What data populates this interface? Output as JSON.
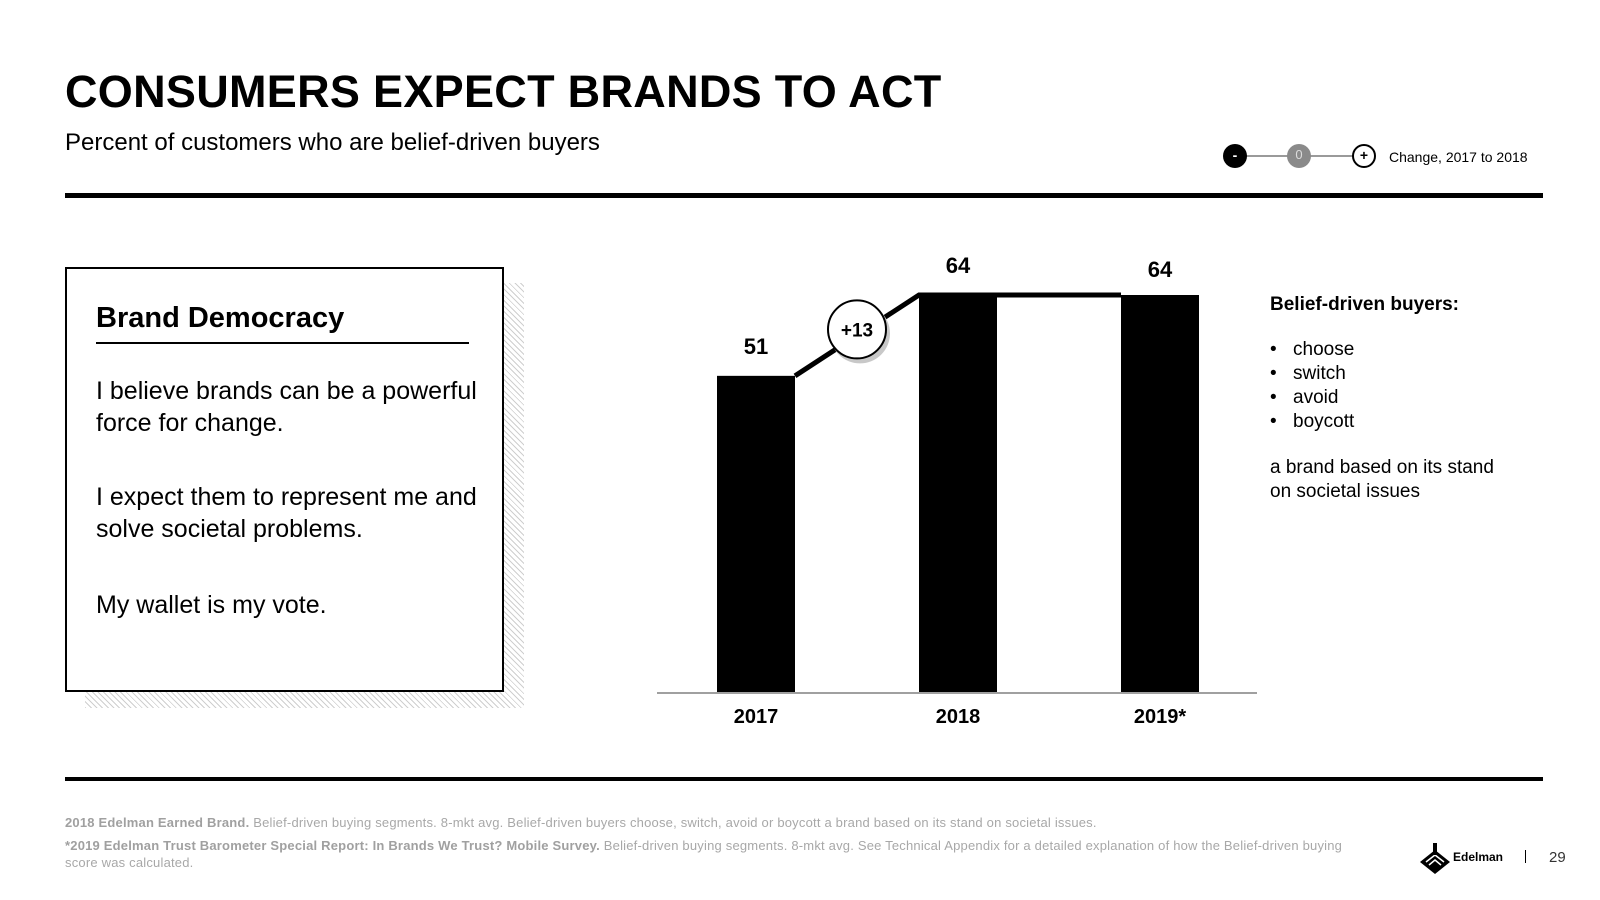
{
  "header": {
    "title": "CONSUMERS EXPECT BRANDS TO ACT",
    "subtitle": "Percent of customers who are belief-driven buyers"
  },
  "legend": {
    "minus": "-",
    "zero": "0",
    "plus": "+",
    "label": "Change, 2017 to 2018"
  },
  "card": {
    "heading": "Brand Democracy",
    "paragraphs": [
      "I believe brands can be a powerful force for change.",
      "I expect them to represent me and solve societal problems.",
      "My wallet is my vote."
    ]
  },
  "chart_data": {
    "type": "bar",
    "categories": [
      "2017",
      "2018",
      "2019*"
    ],
    "values": [
      51,
      64,
      64
    ],
    "title": "",
    "xlabel": "",
    "ylabel": "",
    "ylim": [
      0,
      64
    ],
    "grid": false,
    "change_annotation": {
      "from": "2017",
      "to": "2018",
      "label": "+13"
    }
  },
  "side": {
    "heading": "Belief-driven buyers:",
    "items": [
      "choose",
      "switch",
      "avoid",
      "boycott"
    ],
    "description": "a brand based on its stand on societal issues"
  },
  "footnotes": {
    "line1_strong": "2018 Edelman Earned Brand.",
    "line1_text": " Belief-driven buying segments. 8-mkt avg. Belief-driven buyers choose, switch, avoid or boycott a brand based on its stand on societal issues.",
    "line2_strong": "*2019 Edelman Trust Barometer Special Report: In Brands We Trust? Mobile Survey.",
    "line2_text": " Belief-driven buying segments. 8-mkt avg. See Technical Appendix for a detailed explanation of how the Belief-driven buying score was calculated."
  },
  "brand": {
    "logo_text": "Edelman"
  },
  "page_number": "29",
  "colors": {
    "bar": "#000000",
    "axis": "#a0a0a0",
    "footnote": "#a8a8a8",
    "neutral_dot": "#8a8a8a"
  }
}
